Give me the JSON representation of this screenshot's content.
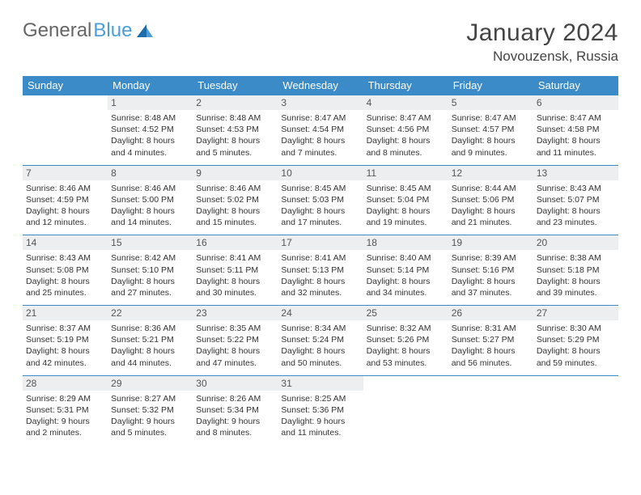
{
  "brand": {
    "word1": "General",
    "word2": "Blue"
  },
  "colors": {
    "header_bg": "#3b8bc9",
    "header_text": "#ffffff",
    "daynum_bg": "#eceeef",
    "border": "#3b8bc9",
    "logo_blue": "#4a9fd8",
    "text": "#333333"
  },
  "title": {
    "month": "January 2024",
    "location": "Novouzensk, Russia"
  },
  "weekdays": [
    "Sunday",
    "Monday",
    "Tuesday",
    "Wednesday",
    "Thursday",
    "Friday",
    "Saturday"
  ],
  "font": {
    "title_size_pt": 22,
    "header_size_pt": 10,
    "cell_size_pt": 8,
    "family": "Arial"
  },
  "layout": {
    "cols": 7,
    "rows": 5,
    "first_weekday_index": 1
  },
  "days": [
    {
      "n": "1",
      "sunrise": "Sunrise: 8:48 AM",
      "sunset": "Sunset: 4:52 PM",
      "daylight": "Daylight: 8 hours and 4 minutes."
    },
    {
      "n": "2",
      "sunrise": "Sunrise: 8:48 AM",
      "sunset": "Sunset: 4:53 PM",
      "daylight": "Daylight: 8 hours and 5 minutes."
    },
    {
      "n": "3",
      "sunrise": "Sunrise: 8:47 AM",
      "sunset": "Sunset: 4:54 PM",
      "daylight": "Daylight: 8 hours and 7 minutes."
    },
    {
      "n": "4",
      "sunrise": "Sunrise: 8:47 AM",
      "sunset": "Sunset: 4:56 PM",
      "daylight": "Daylight: 8 hours and 8 minutes."
    },
    {
      "n": "5",
      "sunrise": "Sunrise: 8:47 AM",
      "sunset": "Sunset: 4:57 PM",
      "daylight": "Daylight: 8 hours and 9 minutes."
    },
    {
      "n": "6",
      "sunrise": "Sunrise: 8:47 AM",
      "sunset": "Sunset: 4:58 PM",
      "daylight": "Daylight: 8 hours and 11 minutes."
    },
    {
      "n": "7",
      "sunrise": "Sunrise: 8:46 AM",
      "sunset": "Sunset: 4:59 PM",
      "daylight": "Daylight: 8 hours and 12 minutes."
    },
    {
      "n": "8",
      "sunrise": "Sunrise: 8:46 AM",
      "sunset": "Sunset: 5:00 PM",
      "daylight": "Daylight: 8 hours and 14 minutes."
    },
    {
      "n": "9",
      "sunrise": "Sunrise: 8:46 AM",
      "sunset": "Sunset: 5:02 PM",
      "daylight": "Daylight: 8 hours and 15 minutes."
    },
    {
      "n": "10",
      "sunrise": "Sunrise: 8:45 AM",
      "sunset": "Sunset: 5:03 PM",
      "daylight": "Daylight: 8 hours and 17 minutes."
    },
    {
      "n": "11",
      "sunrise": "Sunrise: 8:45 AM",
      "sunset": "Sunset: 5:04 PM",
      "daylight": "Daylight: 8 hours and 19 minutes."
    },
    {
      "n": "12",
      "sunrise": "Sunrise: 8:44 AM",
      "sunset": "Sunset: 5:06 PM",
      "daylight": "Daylight: 8 hours and 21 minutes."
    },
    {
      "n": "13",
      "sunrise": "Sunrise: 8:43 AM",
      "sunset": "Sunset: 5:07 PM",
      "daylight": "Daylight: 8 hours and 23 minutes."
    },
    {
      "n": "14",
      "sunrise": "Sunrise: 8:43 AM",
      "sunset": "Sunset: 5:08 PM",
      "daylight": "Daylight: 8 hours and 25 minutes."
    },
    {
      "n": "15",
      "sunrise": "Sunrise: 8:42 AM",
      "sunset": "Sunset: 5:10 PM",
      "daylight": "Daylight: 8 hours and 27 minutes."
    },
    {
      "n": "16",
      "sunrise": "Sunrise: 8:41 AM",
      "sunset": "Sunset: 5:11 PM",
      "daylight": "Daylight: 8 hours and 30 minutes."
    },
    {
      "n": "17",
      "sunrise": "Sunrise: 8:41 AM",
      "sunset": "Sunset: 5:13 PM",
      "daylight": "Daylight: 8 hours and 32 minutes."
    },
    {
      "n": "18",
      "sunrise": "Sunrise: 8:40 AM",
      "sunset": "Sunset: 5:14 PM",
      "daylight": "Daylight: 8 hours and 34 minutes."
    },
    {
      "n": "19",
      "sunrise": "Sunrise: 8:39 AM",
      "sunset": "Sunset: 5:16 PM",
      "daylight": "Daylight: 8 hours and 37 minutes."
    },
    {
      "n": "20",
      "sunrise": "Sunrise: 8:38 AM",
      "sunset": "Sunset: 5:18 PM",
      "daylight": "Daylight: 8 hours and 39 minutes."
    },
    {
      "n": "21",
      "sunrise": "Sunrise: 8:37 AM",
      "sunset": "Sunset: 5:19 PM",
      "daylight": "Daylight: 8 hours and 42 minutes."
    },
    {
      "n": "22",
      "sunrise": "Sunrise: 8:36 AM",
      "sunset": "Sunset: 5:21 PM",
      "daylight": "Daylight: 8 hours and 44 minutes."
    },
    {
      "n": "23",
      "sunrise": "Sunrise: 8:35 AM",
      "sunset": "Sunset: 5:22 PM",
      "daylight": "Daylight: 8 hours and 47 minutes."
    },
    {
      "n": "24",
      "sunrise": "Sunrise: 8:34 AM",
      "sunset": "Sunset: 5:24 PM",
      "daylight": "Daylight: 8 hours and 50 minutes."
    },
    {
      "n": "25",
      "sunrise": "Sunrise: 8:32 AM",
      "sunset": "Sunset: 5:26 PM",
      "daylight": "Daylight: 8 hours and 53 minutes."
    },
    {
      "n": "26",
      "sunrise": "Sunrise: 8:31 AM",
      "sunset": "Sunset: 5:27 PM",
      "daylight": "Daylight: 8 hours and 56 minutes."
    },
    {
      "n": "27",
      "sunrise": "Sunrise: 8:30 AM",
      "sunset": "Sunset: 5:29 PM",
      "daylight": "Daylight: 8 hours and 59 minutes."
    },
    {
      "n": "28",
      "sunrise": "Sunrise: 8:29 AM",
      "sunset": "Sunset: 5:31 PM",
      "daylight": "Daylight: 9 hours and 2 minutes."
    },
    {
      "n": "29",
      "sunrise": "Sunrise: 8:27 AM",
      "sunset": "Sunset: 5:32 PM",
      "daylight": "Daylight: 9 hours and 5 minutes."
    },
    {
      "n": "30",
      "sunrise": "Sunrise: 8:26 AM",
      "sunset": "Sunset: 5:34 PM",
      "daylight": "Daylight: 9 hours and 8 minutes."
    },
    {
      "n": "31",
      "sunrise": "Sunrise: 8:25 AM",
      "sunset": "Sunset: 5:36 PM",
      "daylight": "Daylight: 9 hours and 11 minutes."
    }
  ]
}
